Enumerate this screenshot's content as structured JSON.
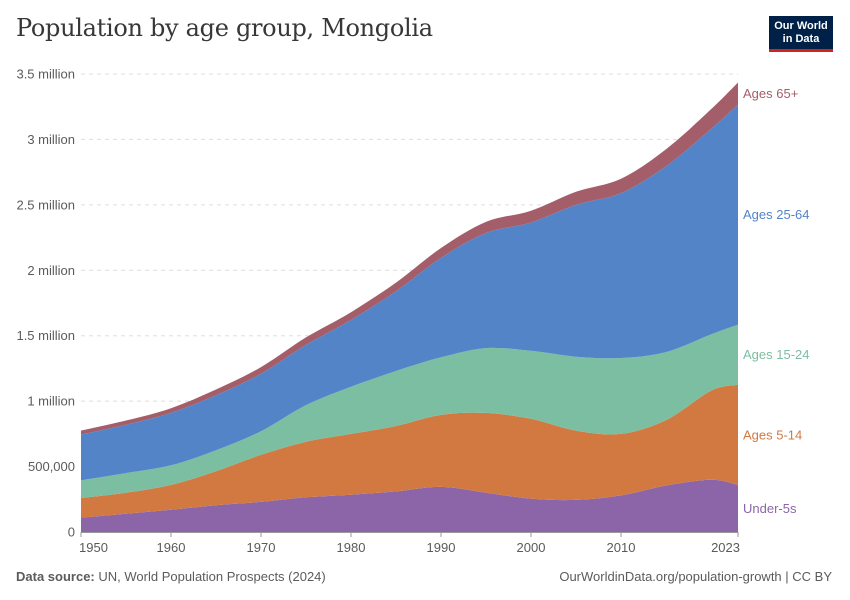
{
  "header": {
    "title": "Population by age group, Mongolia",
    "logo_line1": "Our World",
    "logo_line2": "in Data"
  },
  "footer": {
    "source_label": "Data source:",
    "source_text": "UN, World Population Prospects (2024)",
    "url_text": "OurWorldinData.org/population-growth | CC BY"
  },
  "chart_data": {
    "type": "area",
    "stacked": true,
    "title": "Population by age group, Mongolia",
    "x": [
      1950,
      1955,
      1960,
      1965,
      1970,
      1975,
      1980,
      1985,
      1990,
      1995,
      2000,
      2005,
      2010,
      2015,
      2020,
      2023
    ],
    "ylim": [
      0,
      3500000
    ],
    "yticks": [
      0,
      500000,
      1000000,
      1500000,
      2000000,
      2500000,
      3000000,
      3500000
    ],
    "ytick_labels": [
      "0",
      "500,000",
      "1 million",
      "1.5 million",
      "2 million",
      "2.5 million",
      "3 million",
      "3.5 million"
    ],
    "xticks": [
      1950,
      1960,
      1970,
      1980,
      1990,
      2000,
      2010,
      2023
    ],
    "xtick_labels": [
      "1950",
      "1960",
      "1970",
      "1980",
      "1990",
      "2000",
      "2010",
      "2023"
    ],
    "grid": true,
    "series": [
      {
        "name": "Under-5s",
        "label": "Under-5s",
        "color": "#8c65a9",
        "values": [
          110000,
          140000,
          170000,
          205000,
          230000,
          265000,
          285000,
          310000,
          345000,
          300000,
          255000,
          245000,
          280000,
          355000,
          400000,
          360000
        ]
      },
      {
        "name": "Ages 5-14",
        "label": "Ages 5-14",
        "color": "#d27942",
        "values": [
          150000,
          160000,
          190000,
          260000,
          360000,
          425000,
          465000,
          500000,
          550000,
          610000,
          610000,
          530000,
          470000,
          500000,
          680000,
          765000
        ]
      },
      {
        "name": "Ages 15-24",
        "label": "Ages 15-24",
        "color": "#7cbea1",
        "values": [
          135000,
          150000,
          150000,
          160000,
          180000,
          280000,
          360000,
          420000,
          440000,
          495000,
          520000,
          565000,
          580000,
          520000,
          430000,
          460000
        ]
      },
      {
        "name": "Ages 25-64",
        "label": "Ages 25-64",
        "color": "#5384c8",
        "values": [
          350000,
          370000,
          400000,
          420000,
          440000,
          460000,
          510000,
          610000,
          760000,
          880000,
          980000,
          1160000,
          1260000,
          1420000,
          1570000,
          1680000
        ]
      },
      {
        "name": "Ages 65+",
        "label": "Ages 65+",
        "color": "#a45e6a",
        "values": [
          30000,
          32000,
          36000,
          44000,
          50000,
          57000,
          60000,
          66000,
          75000,
          85000,
          90000,
          100000,
          110000,
          130000,
          150000,
          170000
        ]
      }
    ]
  }
}
